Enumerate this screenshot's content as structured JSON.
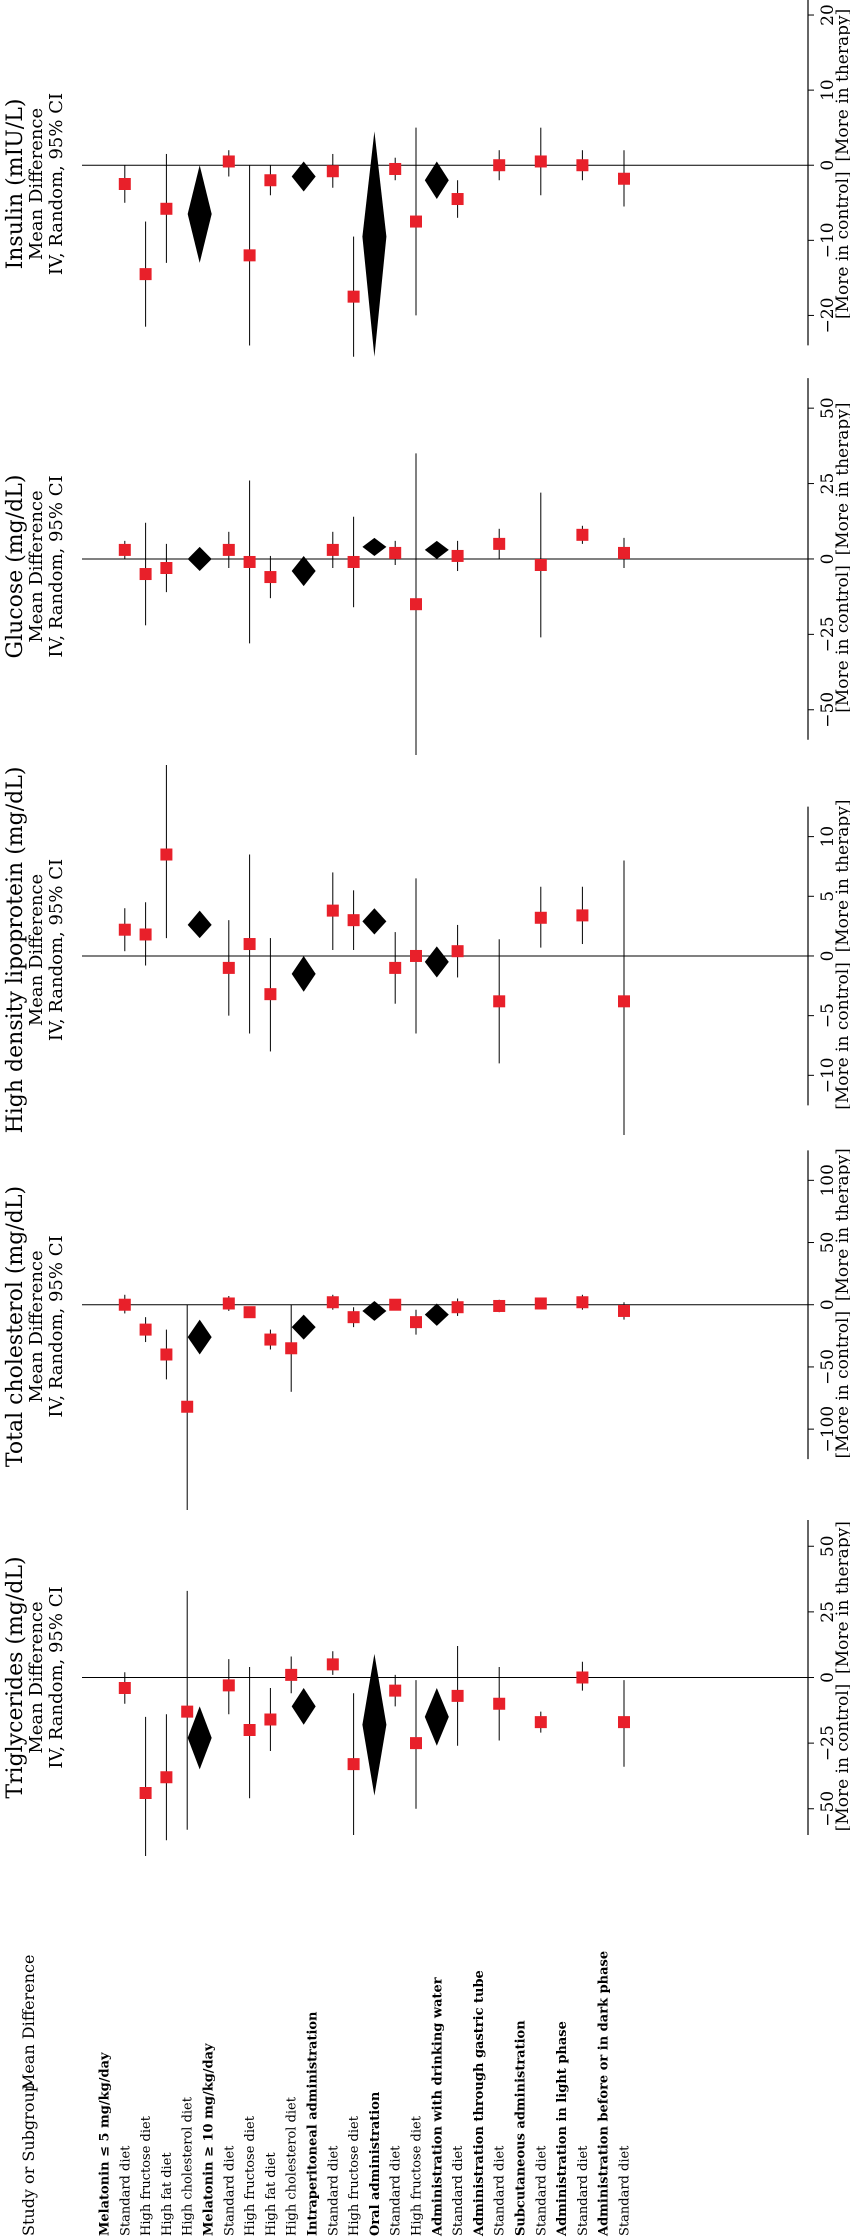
{
  "header": {
    "study_label": "Study or Subgroup",
    "md_label": "Mean Difference"
  },
  "rows": [
    {
      "label": "Melatonin ≤ 5 mg/kg/day",
      "bold": true
    },
    {
      "label": "Standard diet",
      "bold": false
    },
    {
      "label": "High fructose diet",
      "bold": false
    },
    {
      "label": "High fat diet",
      "bold": false
    },
    {
      "label": "High cholesterol diet",
      "bold": false
    },
    {
      "label": "Melatonin ≥ 10 mg/kg/day",
      "bold": true
    },
    {
      "label": "Standard diet",
      "bold": false
    },
    {
      "label": "High fructose diet",
      "bold": false
    },
    {
      "label": "High fat diet",
      "bold": false
    },
    {
      "label": "High cholesterol diet",
      "bold": false
    },
    {
      "label": "Intraperitoneal administration",
      "bold": true
    },
    {
      "label": "Standard diet",
      "bold": false
    },
    {
      "label": "High fructose diet",
      "bold": false
    },
    {
      "label": "Oral administration",
      "bold": true
    },
    {
      "label": "Standard diet",
      "bold": false
    },
    {
      "label": "High fructose diet",
      "bold": false
    },
    {
      "label": "Administration with drinking water",
      "bold": true
    },
    {
      "label": "Standard diet",
      "bold": false
    },
    {
      "label": "Administration through gastric tube",
      "bold": true
    },
    {
      "label": "Standard diet",
      "bold": false
    },
    {
      "label": "Subcutaneous administration",
      "bold": true
    },
    {
      "label": "Standard diet",
      "bold": false
    },
    {
      "label": "Administration in light phase",
      "bold": true
    },
    {
      "label": "Standard diet",
      "bold": false
    },
    {
      "label": "Administration before or in dark phase",
      "bold": true
    },
    {
      "label": "Standard diet",
      "bold": false
    }
  ],
  "colors": {
    "study": "#e8202a",
    "pooled": "#000000",
    "line": "#000000"
  },
  "chart_data": [
    {
      "type": "forest",
      "title": "Triglycerides (mg/dL)",
      "subtitle1": "Mean Difference",
      "subtitle2": "IV, Random, 95% CI",
      "ticks": [
        -50,
        -25,
        0,
        25,
        50
      ],
      "xlim": [
        -60,
        60
      ],
      "left_label": "[More in control]",
      "right_label": "[More in therapy]",
      "points": [
        {
          "row": 1,
          "kind": "study",
          "est": -4,
          "lo": -10,
          "hi": 2
        },
        {
          "row": 2,
          "kind": "study",
          "est": -44,
          "lo": -68,
          "hi": -15
        },
        {
          "row": 3,
          "kind": "study",
          "est": -38,
          "lo": -62,
          "hi": -14
        },
        {
          "row": 4,
          "kind": "study",
          "est": -13,
          "lo": -58,
          "hi": 33
        },
        {
          "row": 4.6,
          "kind": "pooled",
          "est": -23,
          "lo": -35,
          "hi": -11
        },
        {
          "row": 6,
          "kind": "study",
          "est": -3,
          "lo": -14,
          "hi": 7
        },
        {
          "row": 7,
          "kind": "study",
          "est": -20,
          "lo": -46,
          "hi": 4
        },
        {
          "row": 8,
          "kind": "study",
          "est": -16,
          "lo": -28,
          "hi": -4
        },
        {
          "row": 9,
          "kind": "study",
          "est": 1,
          "lo": -6,
          "hi": 8
        },
        {
          "row": 9.6,
          "kind": "pooled",
          "est": -11,
          "lo": -18,
          "hi": -4
        },
        {
          "row": 11,
          "kind": "study",
          "est": 5,
          "lo": 1,
          "hi": 10
        },
        {
          "row": 12,
          "kind": "study",
          "est": -33,
          "lo": -60,
          "hi": -6
        },
        {
          "row": 13,
          "kind": "pooled",
          "est": -18,
          "lo": -45,
          "hi": 9
        },
        {
          "row": 14,
          "kind": "study",
          "est": -5,
          "lo": -11,
          "hi": 1
        },
        {
          "row": 15,
          "kind": "study",
          "est": -25,
          "lo": -50,
          "hi": -1
        },
        {
          "row": 16,
          "kind": "pooled",
          "est": -15,
          "lo": -26,
          "hi": -4
        },
        {
          "row": 17,
          "kind": "study",
          "est": -7,
          "lo": -26,
          "hi": 12
        },
        {
          "row": 19,
          "kind": "study",
          "est": -10,
          "lo": -24,
          "hi": 4
        },
        {
          "row": 21,
          "kind": "study",
          "est": -17,
          "lo": -21,
          "hi": -13
        },
        {
          "row": 23,
          "kind": "study",
          "est": 0,
          "lo": -5,
          "hi": 6
        },
        {
          "row": 25,
          "kind": "study",
          "est": -17,
          "lo": -34,
          "hi": -1
        }
      ]
    },
    {
      "type": "forest",
      "title": "Total cholesterol (mg/dL)",
      "subtitle1": "Mean Difference",
      "subtitle2": "IV, Random, 95% CI",
      "ticks": [
        -100,
        -50,
        0,
        50,
        100
      ],
      "xlim": [
        -165,
        130
      ],
      "left_label": "[More in control]",
      "right_label": "[More in therapy]",
      "points": [
        {
          "row": 1,
          "kind": "study",
          "est": 0,
          "lo": -7,
          "hi": 8
        },
        {
          "row": 2,
          "kind": "study",
          "est": -20,
          "lo": -30,
          "hi": -10
        },
        {
          "row": 3,
          "kind": "study",
          "est": -40,
          "lo": -60,
          "hi": -20
        },
        {
          "row": 4,
          "kind": "study",
          "est": -82,
          "lo": -165,
          "hi": 0
        },
        {
          "row": 4.6,
          "kind": "pooled",
          "est": -26,
          "lo": -40,
          "hi": -12
        },
        {
          "row": 6,
          "kind": "study",
          "est": 1,
          "lo": -5,
          "hi": 7
        },
        {
          "row": 7,
          "kind": "study",
          "est": -6,
          "lo": -10,
          "hi": -2
        },
        {
          "row": 8,
          "kind": "study",
          "est": -28,
          "lo": -36,
          "hi": -20
        },
        {
          "row": 9,
          "kind": "study",
          "est": -35,
          "lo": -70,
          "hi": 0
        },
        {
          "row": 9.6,
          "kind": "pooled",
          "est": -18,
          "lo": -28,
          "hi": -8
        },
        {
          "row": 11,
          "kind": "study",
          "est": 2,
          "lo": -4,
          "hi": 8
        },
        {
          "row": 12,
          "kind": "study",
          "est": -10,
          "lo": -18,
          "hi": -2
        },
        {
          "row": 13,
          "kind": "pooled",
          "est": -5,
          "lo": -13,
          "hi": 3
        },
        {
          "row": 14,
          "kind": "study",
          "est": 0,
          "lo": -4,
          "hi": 4
        },
        {
          "row": 15,
          "kind": "study",
          "est": -14,
          "lo": -24,
          "hi": -4
        },
        {
          "row": 16,
          "kind": "pooled",
          "est": -8,
          "lo": -17,
          "hi": 1
        },
        {
          "row": 17,
          "kind": "study",
          "est": -2,
          "lo": -9,
          "hi": 5
        },
        {
          "row": 19,
          "kind": "study",
          "est": -1,
          "lo": -6,
          "hi": 4
        },
        {
          "row": 21,
          "kind": "study",
          "est": 1,
          "lo": -2,
          "hi": 4
        },
        {
          "row": 23,
          "kind": "study",
          "est": 2,
          "lo": -4,
          "hi": 8
        },
        {
          "row": 25,
          "kind": "study",
          "est": -5,
          "lo": -12,
          "hi": 2
        }
      ]
    },
    {
      "type": "forest",
      "title": "High density lipoprotein (mg/dL)",
      "subtitle1": "Mean Difference",
      "subtitle2": "IV, Random, 95% CI",
      "ticks": [
        -10,
        -5,
        0,
        5,
        10
      ],
      "xlim": [
        -15,
        16
      ],
      "left_label": "[More in control]",
      "right_label": "[More in therapy]",
      "points": [
        {
          "row": 1,
          "kind": "study",
          "est": 2.2,
          "lo": 0.4,
          "hi": 4
        },
        {
          "row": 2,
          "kind": "study",
          "est": 1.8,
          "lo": -0.8,
          "hi": 4.5
        },
        {
          "row": 3,
          "kind": "study",
          "est": 8.5,
          "lo": 1.5,
          "hi": 16
        },
        {
          "row": 4.6,
          "kind": "pooled",
          "est": 2.6,
          "lo": 1.5,
          "hi": 3.8
        },
        {
          "row": 6,
          "kind": "study",
          "est": -1,
          "lo": -5,
          "hi": 3
        },
        {
          "row": 7,
          "kind": "study",
          "est": 1,
          "lo": -6.5,
          "hi": 8.5
        },
        {
          "row": 8,
          "kind": "study",
          "est": -3.2,
          "lo": -8,
          "hi": 1.5
        },
        {
          "row": 9.6,
          "kind": "pooled",
          "est": -1.5,
          "lo": -3,
          "hi": 0
        },
        {
          "row": 11,
          "kind": "study",
          "est": 3.8,
          "lo": 0.5,
          "hi": 7
        },
        {
          "row": 12,
          "kind": "study",
          "est": 3,
          "lo": 0.5,
          "hi": 5.5
        },
        {
          "row": 13,
          "kind": "pooled",
          "est": 2.9,
          "lo": 1.8,
          "hi": 4.0
        },
        {
          "row": 14,
          "kind": "study",
          "est": -1,
          "lo": -4,
          "hi": 2
        },
        {
          "row": 15,
          "kind": "study",
          "est": 0,
          "lo": -6.5,
          "hi": 6.5
        },
        {
          "row": 16,
          "kind": "pooled",
          "est": -0.5,
          "lo": -1.8,
          "hi": 0.8
        },
        {
          "row": 17,
          "kind": "study",
          "est": 0.4,
          "lo": -1.8,
          "hi": 2.6
        },
        {
          "row": 19,
          "kind": "study",
          "est": -3.8,
          "lo": -9,
          "hi": 1.4
        },
        {
          "row": 21,
          "kind": "study",
          "est": 3.2,
          "lo": 0.7,
          "hi": 5.8
        },
        {
          "row": 23,
          "kind": "study",
          "est": 3.4,
          "lo": 1,
          "hi": 5.8
        },
        {
          "row": 25,
          "kind": "study",
          "est": -3.8,
          "lo": -15,
          "hi": 8
        }
      ]
    },
    {
      "type": "forest",
      "title": "Glucose (mg/dL)",
      "subtitle1": "Mean Difference",
      "subtitle2": "IV, Random, 95% CI",
      "ticks": [
        -50,
        -25,
        0,
        25,
        50
      ],
      "xlim": [
        -65,
        60
      ],
      "left_label": "[More in control]",
      "right_label": "[More in therapy]",
      "points": [
        {
          "row": 1,
          "kind": "study",
          "est": 3,
          "lo": 0,
          "hi": 6
        },
        {
          "row": 2,
          "kind": "study",
          "est": -5,
          "lo": -22,
          "hi": 12
        },
        {
          "row": 3,
          "kind": "study",
          "est": -3,
          "lo": -11,
          "hi": 5
        },
        {
          "row": 4.6,
          "kind": "pooled",
          "est": 0,
          "lo": -4,
          "hi": 4
        },
        {
          "row": 6,
          "kind": "study",
          "est": 3,
          "lo": -3,
          "hi": 9
        },
        {
          "row": 7,
          "kind": "study",
          "est": -1,
          "lo": -28,
          "hi": 26
        },
        {
          "row": 8,
          "kind": "study",
          "est": -6,
          "lo": -13,
          "hi": 1
        },
        {
          "row": 9.6,
          "kind": "pooled",
          "est": -4,
          "lo": -9,
          "hi": 1
        },
        {
          "row": 11,
          "kind": "study",
          "est": 3,
          "lo": -3,
          "hi": 9
        },
        {
          "row": 12,
          "kind": "study",
          "est": -1,
          "lo": -16,
          "hi": 14
        },
        {
          "row": 13,
          "kind": "pooled",
          "est": 4,
          "lo": 1,
          "hi": 7
        },
        {
          "row": 14,
          "kind": "study",
          "est": 2,
          "lo": -2,
          "hi": 6
        },
        {
          "row": 15,
          "kind": "study",
          "est": -15,
          "lo": -65,
          "hi": 35
        },
        {
          "row": 16,
          "kind": "pooled",
          "est": 3,
          "lo": 0,
          "hi": 6
        },
        {
          "row": 17,
          "kind": "study",
          "est": 1,
          "lo": -4,
          "hi": 6
        },
        {
          "row": 19,
          "kind": "study",
          "est": 5,
          "lo": 0,
          "hi": 10
        },
        {
          "row": 21,
          "kind": "study",
          "est": -2,
          "lo": -26,
          "hi": 22
        },
        {
          "row": 23,
          "kind": "study",
          "est": 8,
          "lo": 5,
          "hi": 11
        },
        {
          "row": 25,
          "kind": "study",
          "est": 2,
          "lo": -3,
          "hi": 7
        }
      ]
    },
    {
      "type": "forest",
      "title": "Insulin (mIU/L)",
      "subtitle1": "Mean Difference",
      "subtitle2": "IV, Random, 95% CI",
      "ticks": [
        -20,
        -10,
        0,
        10,
        20
      ],
      "xlim": [
        -27,
        22
      ],
      "left_label": "[More in control]",
      "right_label": "[More in therapy]",
      "points": [
        {
          "row": 1,
          "kind": "study",
          "est": -2.5,
          "lo": -5,
          "hi": 0
        },
        {
          "row": 2,
          "kind": "study",
          "est": -14.5,
          "lo": -21.5,
          "hi": -7.5
        },
        {
          "row": 3,
          "kind": "study",
          "est": -5.8,
          "lo": -13,
          "hi": 1.5
        },
        {
          "row": 4.6,
          "kind": "pooled",
          "est": -6.5,
          "lo": -13,
          "hi": 0
        },
        {
          "row": 6,
          "kind": "study",
          "est": 0.5,
          "lo": -1.5,
          "hi": 2
        },
        {
          "row": 7,
          "kind": "study",
          "est": -12,
          "lo": -24,
          "hi": 0
        },
        {
          "row": 8,
          "kind": "study",
          "est": -2,
          "lo": -4,
          "hi": 0
        },
        {
          "row": 9.6,
          "kind": "pooled",
          "est": -1.5,
          "lo": -3.5,
          "hi": 0.5
        },
        {
          "row": 11,
          "kind": "study",
          "est": -0.8,
          "lo": -3,
          "hi": 1.5
        },
        {
          "row": 12,
          "kind": "study",
          "est": -17.5,
          "lo": -25.5,
          "hi": -9.5
        },
        {
          "row": 13,
          "kind": "pooled",
          "est": -9.5,
          "lo": -25.5,
          "hi": 4.5
        },
        {
          "row": 14,
          "kind": "study",
          "est": -0.5,
          "lo": -2,
          "hi": 1
        },
        {
          "row": 15,
          "kind": "study",
          "est": -7.5,
          "lo": -20,
          "hi": 5
        },
        {
          "row": 16,
          "kind": "pooled",
          "est": -2,
          "lo": -4.5,
          "hi": 0.5
        },
        {
          "row": 17,
          "kind": "study",
          "est": -4.5,
          "lo": -7,
          "hi": -2
        },
        {
          "row": 19,
          "kind": "study",
          "est": 0,
          "lo": -2,
          "hi": 2
        },
        {
          "row": 21,
          "kind": "study",
          "est": 0.5,
          "lo": -4,
          "hi": 5
        },
        {
          "row": 23,
          "kind": "study",
          "est": 0,
          "lo": -2,
          "hi": 2
        },
        {
          "row": 25,
          "kind": "study",
          "est": -1.8,
          "lo": -5.5,
          "hi": 2
        }
      ]
    }
  ]
}
